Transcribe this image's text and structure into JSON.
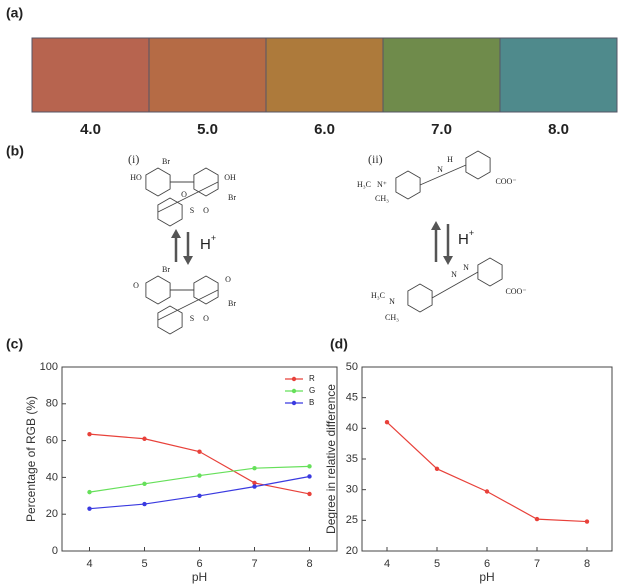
{
  "panels": [
    "(a)",
    "(b)",
    "(c)",
    "(d)"
  ],
  "swatches": [
    {
      "label": "4.0",
      "color": "#b7644f"
    },
    {
      "label": "5.0",
      "color": "#b56b45"
    },
    {
      "label": "6.0",
      "color": "#ad7a3b"
    },
    {
      "label": "7.0",
      "color": "#6f8b4b"
    },
    {
      "label": "8.0",
      "color": "#4f8a8c"
    }
  ],
  "structures": [
    {
      "label": "(i)",
      "reagent": "H",
      "charge": "+",
      "top": [
        "HO",
        "Br",
        "OH",
        "Br",
        "O",
        "S",
        "O"
      ],
      "bottom": [
        "Br",
        "O",
        "O",
        "Br",
        "S",
        "O"
      ]
    },
    {
      "label": "(ii)",
      "reagent": "H",
      "charge": "+",
      "top": [
        "H₃C",
        "N⁺",
        "CH₃",
        "N",
        "H",
        "COO⁻"
      ],
      "bottom": [
        "H₃C",
        "N",
        "CH₃",
        "N",
        "N",
        "COO⁻"
      ]
    }
  ],
  "chart_data": [
    {
      "type": "line",
      "xlabel": "pH",
      "ylabel": "Percentage of RGB (%)",
      "x": [
        4,
        5,
        6,
        7,
        8
      ],
      "xlim": [
        3.5,
        8.5
      ],
      "xticks": [
        4,
        5,
        6,
        7,
        8
      ],
      "ylim": [
        0,
        100
      ],
      "yticks": [
        0,
        20,
        40,
        60,
        80,
        100
      ],
      "legend": "upper right",
      "series": [
        {
          "name": "R",
          "color": "#e8413a",
          "values": [
            63.5,
            61,
            54,
            37,
            31
          ]
        },
        {
          "name": "G",
          "color": "#66e05a",
          "values": [
            32,
            36.5,
            41,
            45,
            46
          ]
        },
        {
          "name": "B",
          "color": "#3a3ae0",
          "values": [
            23,
            25.5,
            30,
            35,
            40.5
          ]
        }
      ]
    },
    {
      "type": "line",
      "xlabel": "pH",
      "ylabel": "Degree in relative difference",
      "x": [
        4,
        5,
        6,
        7,
        8
      ],
      "xlim": [
        3.5,
        8.5
      ],
      "xticks": [
        4,
        5,
        6,
        7,
        8
      ],
      "ylim": [
        20,
        50
      ],
      "yticks": [
        20,
        25,
        30,
        35,
        40,
        45,
        50
      ],
      "series": [
        {
          "color": "#e8413a",
          "values": [
            41,
            33.4,
            29.7,
            25.2,
            24.8
          ]
        }
      ]
    }
  ]
}
